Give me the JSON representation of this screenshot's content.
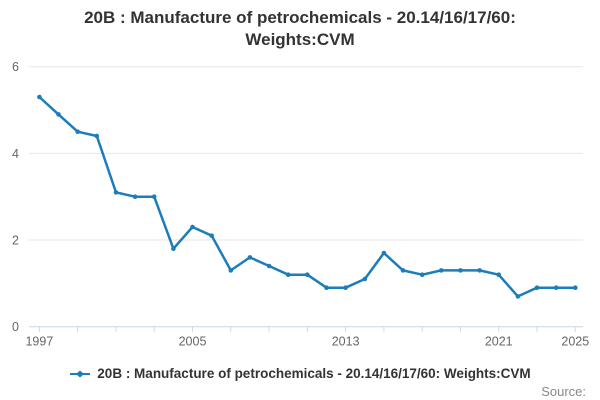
{
  "title": "20B : Manufacture of petrochemicals - 20.14/16/17/60: Weights:CVM",
  "source_label": "Source:",
  "legend": {
    "position": "bottom-center",
    "items": [
      {
        "label": "20B : Manufacture of petrochemicals - 20.14/16/17/60: Weights:CVM",
        "marker": "line-with-point",
        "color": "#1d7cba"
      }
    ]
  },
  "colors": {
    "line": "#1d7cba",
    "grid": "#e6e6e6",
    "axis": "#ccd6eb",
    "tick_label": "#666666",
    "title": "#333333",
    "legend_text": "#333333",
    "source": "#888888",
    "background": "#ffffff"
  },
  "chart_data": {
    "type": "line",
    "title": "20B : Manufacture of petrochemicals - 20.14/16/17/60: Weights:CVM",
    "x": [
      1997,
      1998,
      1999,
      2000,
      2001,
      2002,
      2003,
      2004,
      2005,
      2006,
      2007,
      2008,
      2009,
      2010,
      2011,
      2012,
      2013,
      2014,
      2015,
      2016,
      2017,
      2018,
      2019,
      2020,
      2021,
      2022,
      2023,
      2024,
      2025
    ],
    "series": [
      {
        "name": "20B : Manufacture of petrochemicals - 20.14/16/17/60: Weights:CVM",
        "color": "#1d7cba",
        "values": [
          5.3,
          4.9,
          4.5,
          4.4,
          3.1,
          3.0,
          3.0,
          1.8,
          2.3,
          2.1,
          1.3,
          1.6,
          1.4,
          1.2,
          1.2,
          0.9,
          0.9,
          1.1,
          1.7,
          1.3,
          1.2,
          1.3,
          1.3,
          1.3,
          1.2,
          0.7,
          0.9,
          0.9,
          0.9
        ]
      }
    ],
    "xlabel": "",
    "ylabel": "",
    "ylim": [
      0,
      6
    ],
    "yticks": [
      0,
      2,
      4,
      6
    ],
    "xticks_labeled": [
      1997,
      2005,
      2013,
      2021,
      2025
    ],
    "xtick_step": 2,
    "grid": "horizontal",
    "legend_position": "bottom",
    "markers": true
  }
}
